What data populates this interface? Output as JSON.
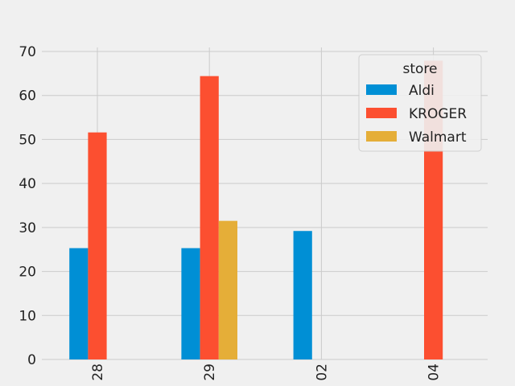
{
  "chart_data": {
    "type": "bar",
    "categories": [
      "28",
      "29",
      "02",
      "04"
    ],
    "series": [
      {
        "name": "Aldi",
        "values": [
          25.3,
          25.3,
          29.2,
          null
        ]
      },
      {
        "name": "KROGER",
        "values": [
          51.6,
          64.4,
          null,
          67.9
        ]
      },
      {
        "name": "Walmart",
        "values": [
          null,
          31.5,
          null,
          null
        ]
      }
    ],
    "ylim": [
      0,
      70
    ],
    "yticks": [
      0,
      10,
      20,
      30,
      40,
      50,
      60,
      70
    ],
    "grid": true,
    "legend": {
      "title": "store",
      "placement": "top-right"
    },
    "colors": [
      "#008fd5",
      "#fc4f30",
      "#e5ae38"
    ],
    "xlabel": "",
    "ylabel": ""
  }
}
